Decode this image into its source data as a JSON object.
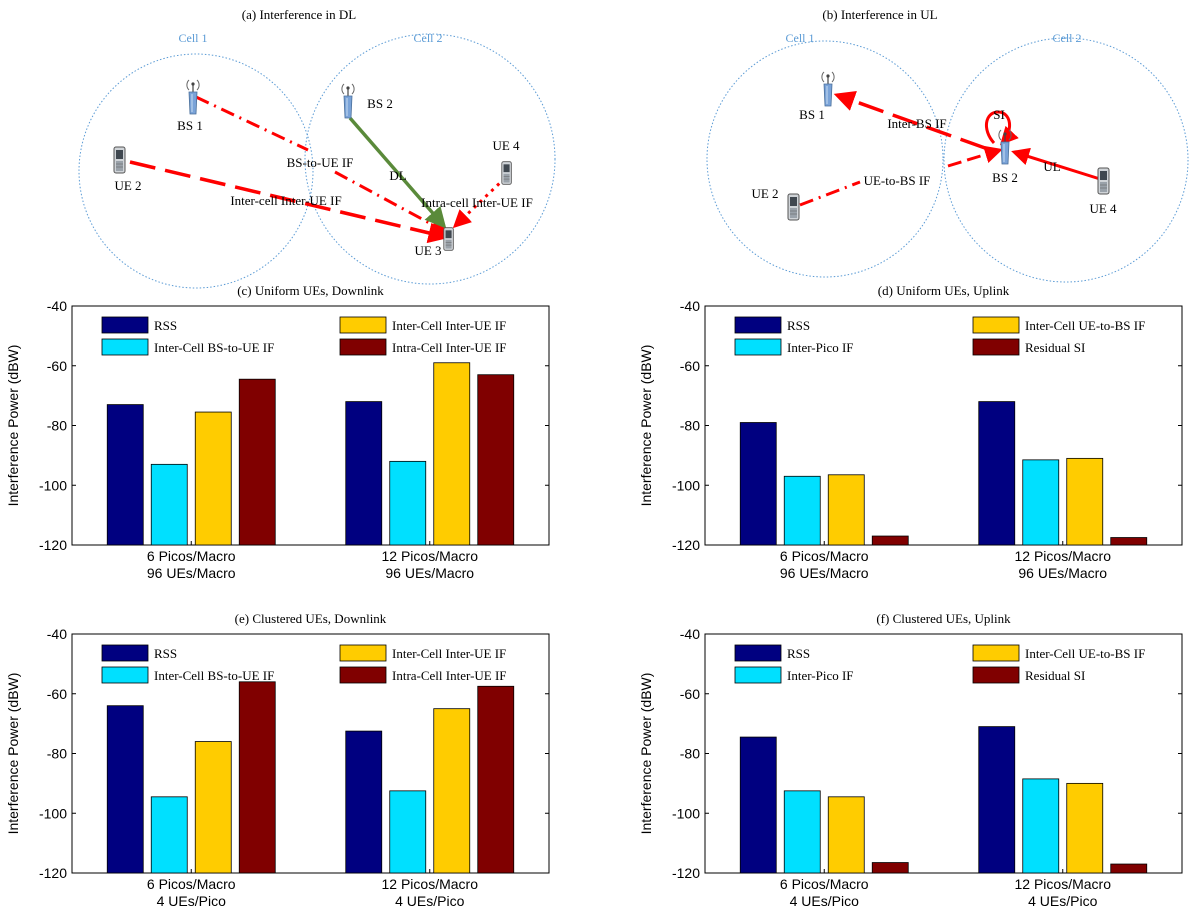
{
  "panel_a": {
    "title": "(a) Interference in DL",
    "cell1": "Cell 1",
    "cell2": "Cell 2",
    "labels": {
      "bs1": "BS 1",
      "bs2": "BS 2",
      "ue2": "UE 2",
      "ue3": "UE 3",
      "ue4": "UE 4",
      "bs_to_ue": "BS-to-UE IF",
      "dl": "DL",
      "inter_cell_inter_ue": "Inter-cell Inter-UE IF",
      "intra_cell_inter_ue": "Intra-cell Inter-UE IF"
    }
  },
  "panel_b": {
    "title": "(b) Interference in UL",
    "cell1": "Cell 1",
    "cell2": "Cell 2",
    "labels": {
      "bs1": "BS 1",
      "bs2": "BS 2",
      "ue2": "UE 2",
      "ue4": "UE 4",
      "si": "SI",
      "inter_bs": "Inter-BS IF",
      "ue_to_bs": "UE-to-BS IF",
      "ul": "UL"
    }
  },
  "colors": {
    "rss": "#000080",
    "cyan": "#00e0ff",
    "yellow": "#ffcc00",
    "maroon": "#800000",
    "arrow_red": "#ff0000",
    "dl_green": "#5a8a3a",
    "cell_circle": "#5b9bd5"
  },
  "chart_data": [
    {
      "id": "c",
      "type": "bar",
      "title": "(c) Uniform UEs, Downlink",
      "ylabel": "Interference Power (dBW)",
      "ylim": [
        -120,
        -40
      ],
      "yticks": [
        -120,
        -100,
        -80,
        -60,
        -40
      ],
      "categories": [
        [
          "6 Picos/Macro",
          "96 UEs/Macro"
        ],
        [
          "12 Picos/Macro",
          "96 UEs/Macro"
        ]
      ],
      "series": [
        {
          "name": "RSS",
          "values": [
            -73,
            -72
          ]
        },
        {
          "name": "Inter-Cell BS-to-UE IF",
          "values": [
            -93,
            -92
          ]
        },
        {
          "name": "Inter-Cell Inter-UE IF",
          "values": [
            -75.5,
            -59
          ]
        },
        {
          "name": "Intra-Cell Inter-UE IF",
          "values": [
            -64.5,
            -63
          ]
        }
      ],
      "legend": "top"
    },
    {
      "id": "d",
      "type": "bar",
      "title": "(d) Uniform UEs, Uplink",
      "ylabel": "Interference Power (dBW)",
      "ylim": [
        -120,
        -40
      ],
      "yticks": [
        -120,
        -100,
        -80,
        -60,
        -40
      ],
      "categories": [
        [
          "6 Picos/Macro",
          "96 UEs/Macro"
        ],
        [
          "12 Picos/Macro",
          "96 UEs/Macro"
        ]
      ],
      "series": [
        {
          "name": "RSS",
          "values": [
            -79,
            -72
          ]
        },
        {
          "name": "Inter-Pico IF",
          "values": [
            -97,
            -91.5
          ]
        },
        {
          "name": "Inter-Cell UE-to-BS IF",
          "values": [
            -96.5,
            -91
          ]
        },
        {
          "name": "Residual SI",
          "values": [
            -117,
            -117.5
          ]
        }
      ],
      "legend": "top"
    },
    {
      "id": "e",
      "type": "bar",
      "title": "(e) Clustered UEs, Downlink",
      "ylabel": "Interference Power (dBW)",
      "ylim": [
        -120,
        -40
      ],
      "yticks": [
        -120,
        -100,
        -80,
        -60,
        -40
      ],
      "categories": [
        [
          "6 Picos/Macro",
          "4 UEs/Pico"
        ],
        [
          "12 Picos/Macro",
          "4 UEs/Pico"
        ]
      ],
      "series": [
        {
          "name": "RSS",
          "values": [
            -64,
            -72.5
          ]
        },
        {
          "name": "Inter-Cell BS-to-UE IF",
          "values": [
            -94.5,
            -92.5
          ]
        },
        {
          "name": "Inter-Cell Inter-UE IF",
          "values": [
            -76,
            -65
          ]
        },
        {
          "name": "Intra-Cell Inter-UE IF",
          "values": [
            -56,
            -57.5
          ]
        }
      ],
      "legend": "top"
    },
    {
      "id": "f",
      "type": "bar",
      "title": "(f) Clustered UEs, Uplink",
      "ylabel": "Interference Power (dBW)",
      "ylim": [
        -120,
        -40
      ],
      "yticks": [
        -120,
        -100,
        -80,
        -60,
        -40
      ],
      "categories": [
        [
          "6 Picos/Macro",
          "4 UEs/Pico"
        ],
        [
          "12 Picos/Macro",
          "4 UEs/Pico"
        ]
      ],
      "series": [
        {
          "name": "RSS",
          "values": [
            -74.5,
            -71
          ]
        },
        {
          "name": "Inter-Pico IF",
          "values": [
            -92.5,
            -88.5
          ]
        },
        {
          "name": "Inter-Cell UE-to-BS IF",
          "values": [
            -94.5,
            -90
          ]
        },
        {
          "name": "Residual SI",
          "values": [
            -116.5,
            -117
          ]
        }
      ],
      "legend": "top"
    }
  ]
}
